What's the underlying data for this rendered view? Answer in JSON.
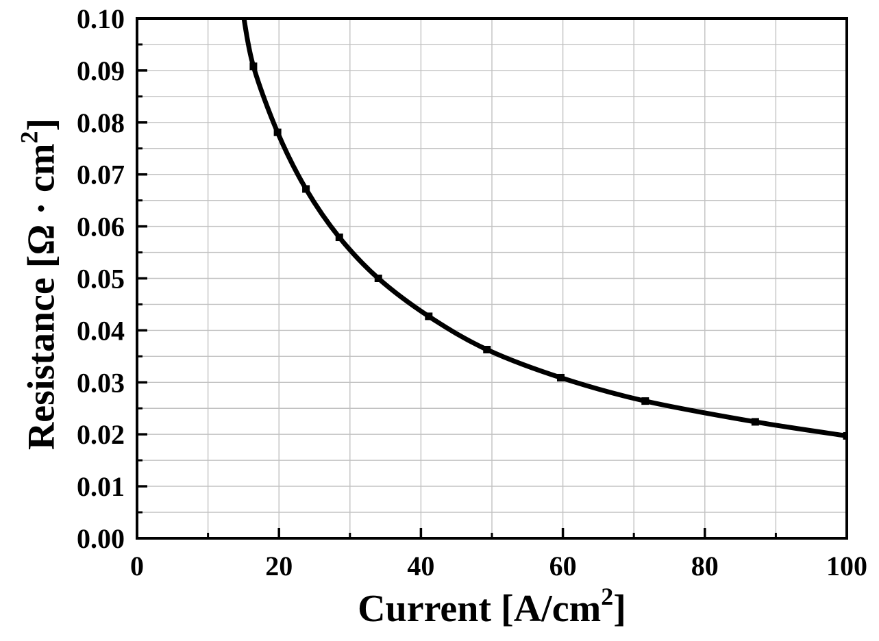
{
  "figure": {
    "background_color": "#ffffff",
    "axis_color": "#000000",
    "grid_color": "#c2c2c2",
    "curve_color": "#000000"
  },
  "chart_data": {
    "type": "line",
    "title": "",
    "xlabel": {
      "prefix": "Current [A/cm",
      "sup": "2",
      "suffix": "]"
    },
    "ylabel": {
      "prefix": "Resistance [Ω · cm",
      "sup": "2",
      "suffix": "]"
    },
    "x": [
      16.4,
      19.8,
      23.8,
      28.5,
      34.0,
      41.1,
      49.3,
      59.7,
      71.6,
      87.1,
      100
    ],
    "y": [
      0.0908,
      0.0781,
      0.0672,
      0.0579,
      0.05,
      0.0427,
      0.0363,
      0.0309,
      0.0264,
      0.0224,
      0.0197
    ],
    "curve_entry_point": {
      "x": 15.0,
      "y": 0.1005
    },
    "xlim": [
      0,
      100
    ],
    "ylim": [
      0.0,
      0.1
    ],
    "x_major_ticks": [
      0,
      20,
      40,
      60,
      80,
      100
    ],
    "x_minor_ticks": [
      10,
      30,
      50,
      70,
      90
    ],
    "x_tick_labels": [
      "0",
      "20",
      "40",
      "60",
      "80",
      "100"
    ],
    "y_major_ticks": [
      0.0,
      0.01,
      0.02,
      0.03,
      0.04,
      0.05,
      0.06,
      0.07,
      0.08,
      0.09,
      0.1
    ],
    "y_minor_ticks": [
      0.005,
      0.015,
      0.025,
      0.035,
      0.045,
      0.055,
      0.065,
      0.075,
      0.085,
      0.095
    ],
    "y_tick_labels": [
      "0.00",
      "0.01",
      "0.02",
      "0.03",
      "0.04",
      "0.05",
      "0.06",
      "0.07",
      "0.08",
      "0.09",
      "0.10"
    ],
    "grid": true,
    "grid_interval_x": 10,
    "grid_interval_y": 0.005,
    "legend_position": "none",
    "marker": "square",
    "series_name": "resistance-vs-current"
  }
}
